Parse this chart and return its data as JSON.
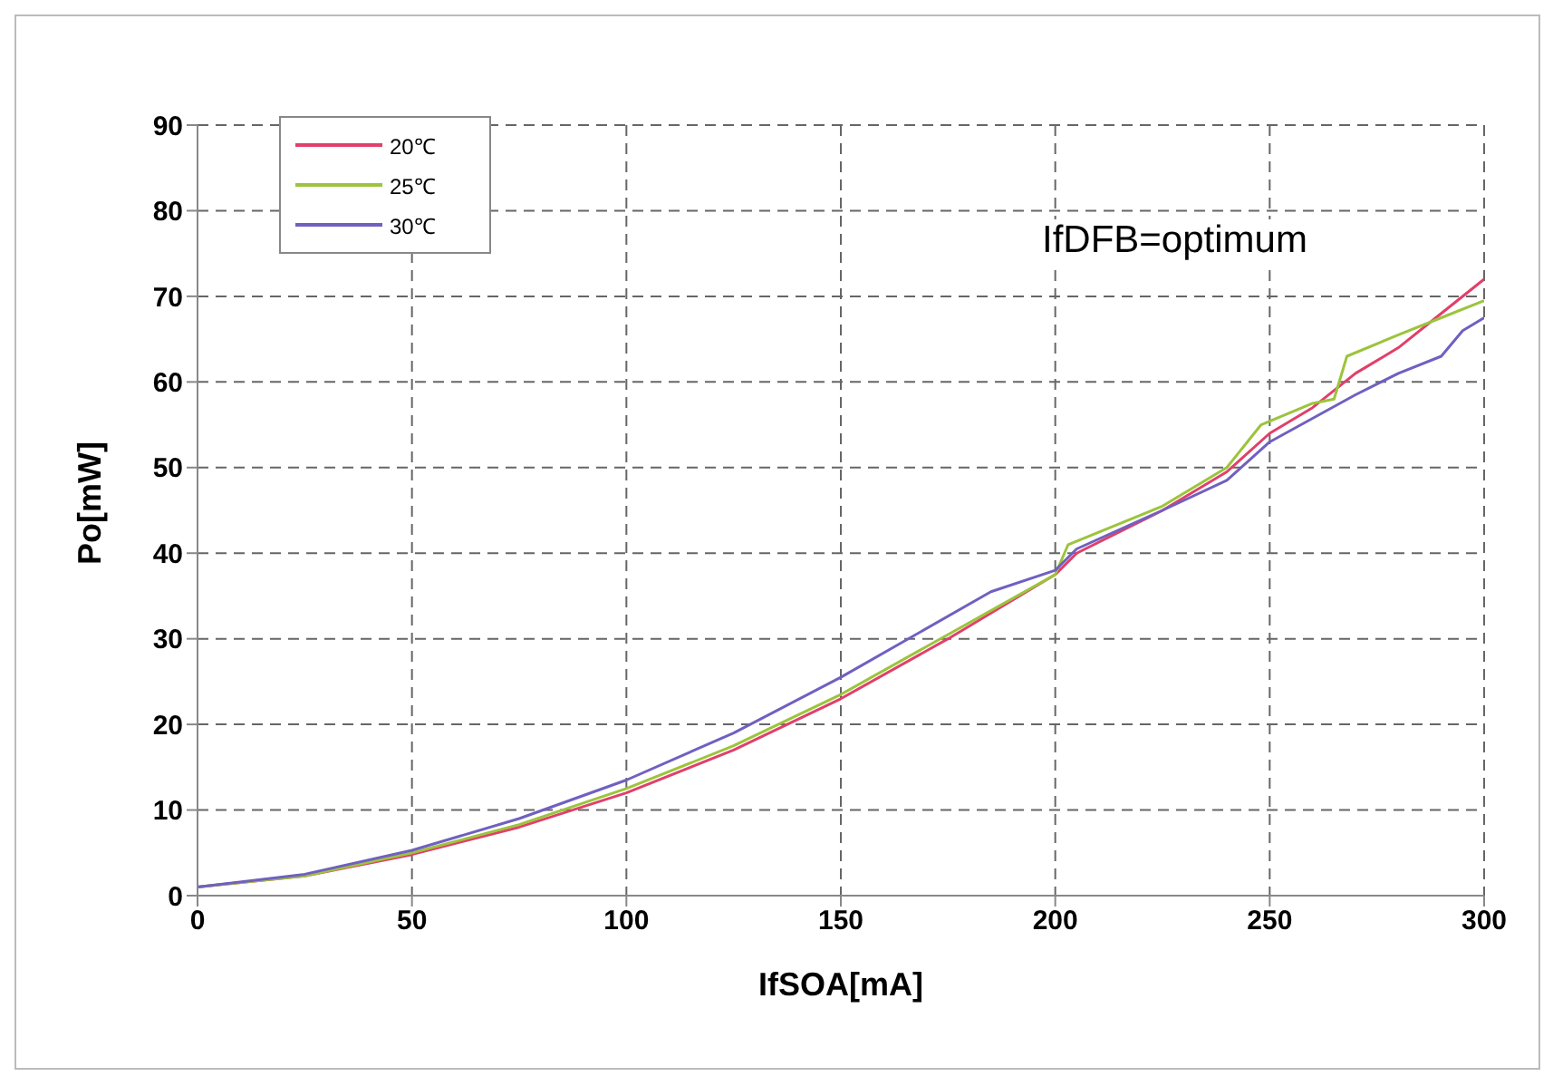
{
  "chart_data": {
    "type": "line",
    "xlabel": "IfSOA[mA]",
    "ylabel": "Po[mW]",
    "annotations": [
      "IfDFB=optimum"
    ],
    "xlim": [
      0,
      300
    ],
    "xticks": [
      0,
      50,
      100,
      150,
      200,
      250,
      300
    ],
    "ylim": [
      0,
      90
    ],
    "yticks": [
      0,
      10,
      20,
      30,
      40,
      50,
      60,
      70,
      80,
      90
    ],
    "grid": true,
    "legend": "top left",
    "marker": "none",
    "line_style": "solid",
    "series": [
      {
        "name": "20℃",
        "color": "#e0406a",
        "x": [
          0,
          25,
          50,
          75,
          100,
          125,
          150,
          175,
          200,
          205,
          225,
          240,
          250,
          260,
          270,
          280,
          290,
          300
        ],
        "values": [
          1,
          2.3,
          4.8,
          8,
          12,
          17,
          23,
          30,
          37.5,
          40,
          45,
          49.5,
          54,
          57,
          61,
          64,
          68,
          72
        ]
      },
      {
        "name": "25℃",
        "color": "#9cc43c",
        "x": [
          0,
          25,
          50,
          75,
          100,
          125,
          150,
          175,
          200,
          203,
          225,
          240,
          248,
          260,
          265,
          268,
          280,
          290,
          300
        ],
        "values": [
          1,
          2.3,
          5,
          8.3,
          12.5,
          17.5,
          23.5,
          30.5,
          37.5,
          41,
          45.5,
          50,
          55,
          57.5,
          58,
          63,
          65.5,
          67.5,
          69.5
        ]
      },
      {
        "name": "30℃",
        "color": "#7060c0",
        "x": [
          0,
          25,
          50,
          75,
          100,
          125,
          150,
          185,
          200,
          205,
          225,
          240,
          250,
          270,
          280,
          290,
          295,
          300
        ],
        "values": [
          1,
          2.5,
          5.3,
          9,
          13.5,
          19,
          25.5,
          35.5,
          38,
          40.5,
          45,
          48.5,
          53,
          58.5,
          61,
          63,
          66,
          67.5
        ]
      }
    ]
  }
}
